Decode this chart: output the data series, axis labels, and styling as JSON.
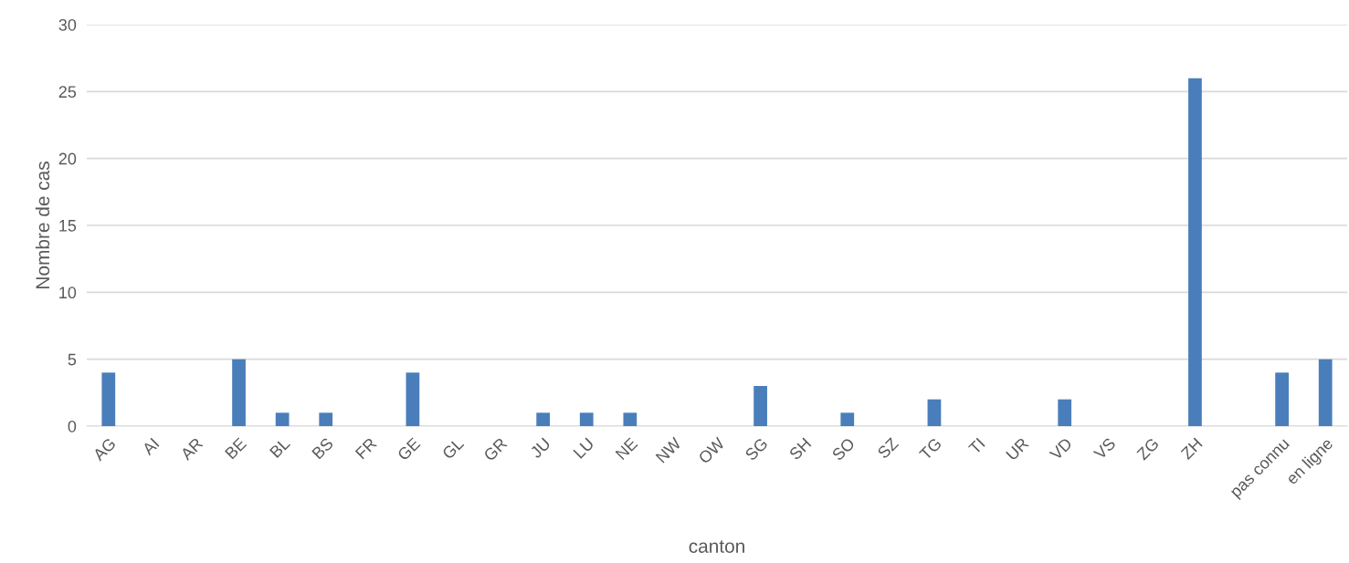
{
  "chart_data": {
    "type": "bar",
    "categories": [
      "AG",
      "AI",
      "AR",
      "BE",
      "BL",
      "BS",
      "FR",
      "GE",
      "GL",
      "GR",
      "JU",
      "LU",
      "NE",
      "NW",
      "OW",
      "SG",
      "SH",
      "SO",
      "SZ",
      "TG",
      "TI",
      "UR",
      "VD",
      "VS",
      "ZG",
      "ZH",
      null,
      "pas connu",
      "en ligne"
    ],
    "values": [
      4,
      0,
      0,
      5,
      1,
      1,
      0,
      4,
      0,
      0,
      1,
      1,
      1,
      0,
      0,
      3,
      0,
      1,
      0,
      2,
      0,
      0,
      2,
      0,
      0,
      26,
      0,
      4,
      5
    ],
    "color": "#4a7ebb",
    "xlabel": "canton",
    "ylabel": "Nombre de cas",
    "ylim": [
      0,
      30
    ],
    "yticks": [
      0,
      5,
      10,
      15,
      20,
      25,
      30
    ],
    "grid": "y"
  }
}
